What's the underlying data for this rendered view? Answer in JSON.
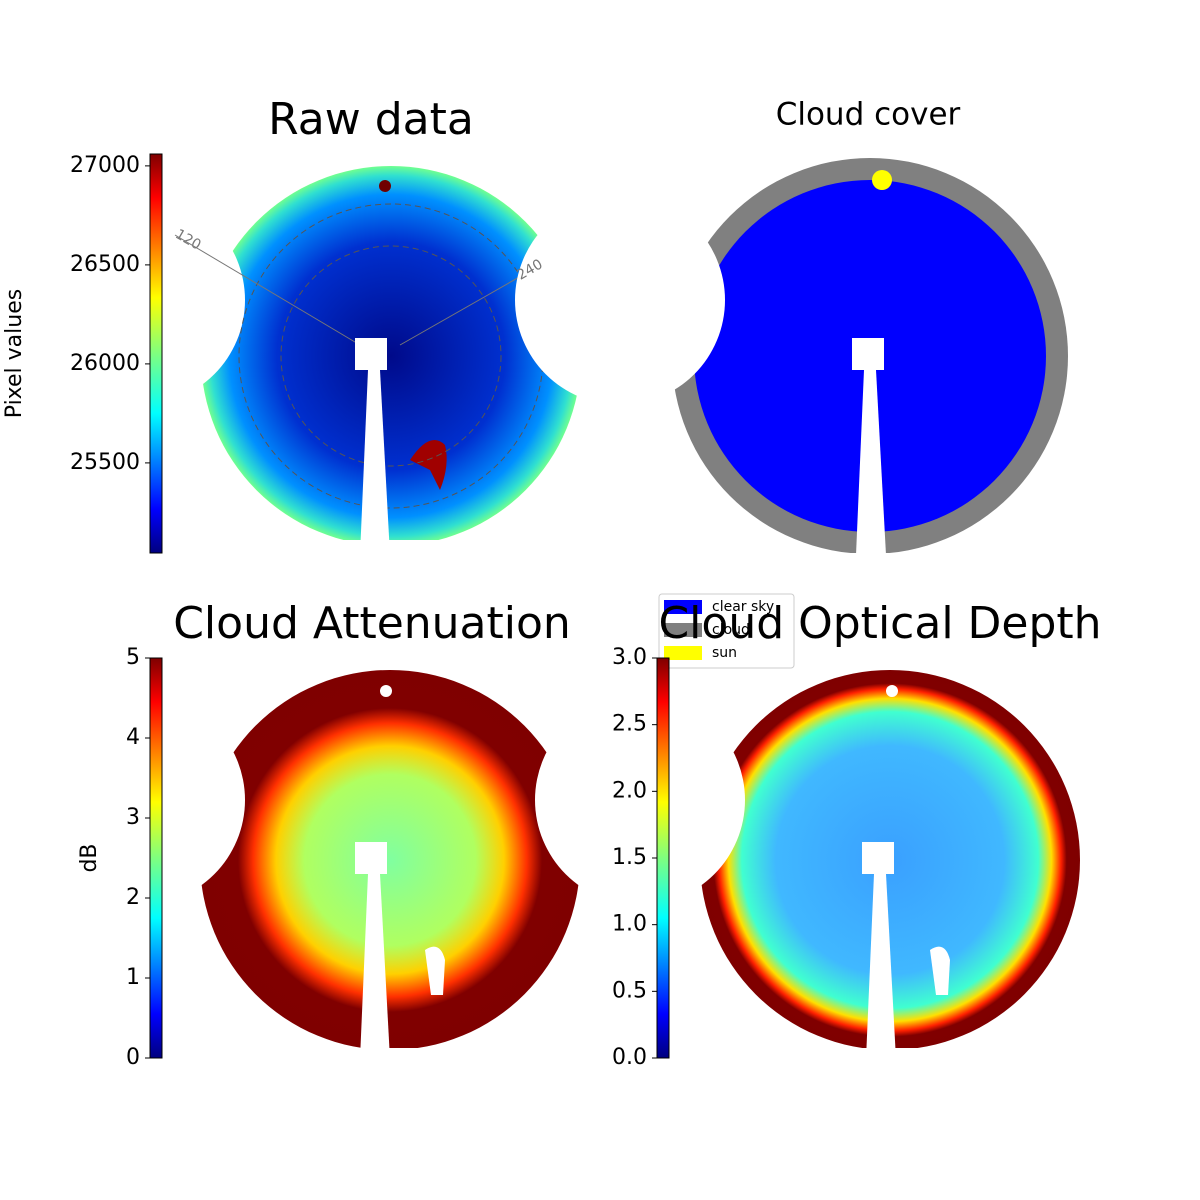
{
  "chart_data": [
    {
      "type": "image",
      "title": "Raw data",
      "ylabel": "Pixel values",
      "ylim": [
        25045,
        27060
      ],
      "yticks": [
        25500,
        26000,
        26500,
        27000
      ],
      "colormap": "jet",
      "annotations": [
        "120",
        "240"
      ]
    },
    {
      "type": "image",
      "title": "Cloud cover",
      "legend": {
        "categories": [
          "clear sky",
          "cloud",
          "sun"
        ],
        "colors": [
          "#0000ff",
          "#808080",
          "#ffff00"
        ]
      }
    },
    {
      "type": "image",
      "title": "Cloud Attenuation",
      "ylabel": "dB",
      "ylim": [
        0,
        5
      ],
      "yticks": [
        0,
        1,
        2,
        3,
        4,
        5
      ],
      "colormap": "jet"
    },
    {
      "type": "image",
      "title": "Cloud Optical Depth",
      "ylim": [
        0,
        3
      ],
      "yticks": [
        {
          "value": 0,
          "label": "0.0"
        },
        {
          "value": 0.5,
          "label": "0.5"
        },
        {
          "value": 1,
          "label": "1.0"
        },
        {
          "value": 1.5,
          "label": "1.5"
        },
        {
          "value": 2,
          "label": "2.0"
        },
        {
          "value": 2.5,
          "label": "2.5"
        },
        {
          "value": 3,
          "label": "3.0"
        }
      ],
      "colormap": "jet"
    }
  ]
}
